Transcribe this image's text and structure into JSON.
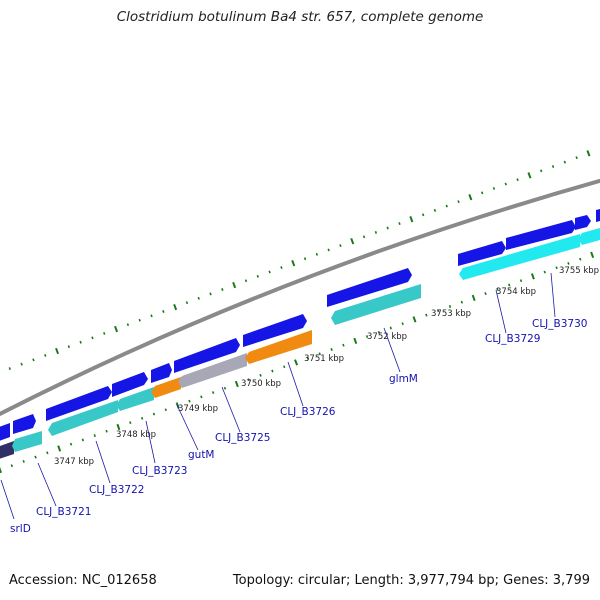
{
  "title": "Clostridium botulinum Ba4 str. 657, complete genome",
  "footer": {
    "accession": "Accession: NC_012658",
    "summary": "Topology: circular; Length: 3,977,794 bp; Genes: 3,799"
  },
  "colors": {
    "backbone": "#8a8a8a",
    "forward_gene": "#1515e6",
    "reverse_gene": "#38c8c8",
    "reverse_gene_light": "#22e8f0",
    "highlight_gene": "#f08a10",
    "gray_gene": "#a7a7b5",
    "steel_gene": "#4b84c0",
    "navy_gene": "#303066",
    "tick": "#1a7a1a",
    "label": "#1212b0"
  },
  "scale": {
    "ticks": [
      {
        "label": "3747 kbp"
      },
      {
        "label": "3748 kbp"
      },
      {
        "label": "3749 kbp"
      },
      {
        "label": "3750 kbp"
      },
      {
        "label": "3751 kbp"
      },
      {
        "label": "3752 kbp"
      },
      {
        "label": "3753 kbp"
      },
      {
        "label": "3754 kbp"
      },
      {
        "label": "3755 kbp"
      }
    ]
  },
  "gene_labels": [
    {
      "name": "srlD"
    },
    {
      "name": "CLJ_B3721"
    },
    {
      "name": "CLJ_B3722"
    },
    {
      "name": "CLJ_B3723"
    },
    {
      "name": "gutM"
    },
    {
      "name": "CLJ_B3725"
    },
    {
      "name": "CLJ_B3726"
    },
    {
      "name": "glmM"
    },
    {
      "name": "CLJ_B3729"
    },
    {
      "name": "CLJ_B3730"
    }
  ]
}
